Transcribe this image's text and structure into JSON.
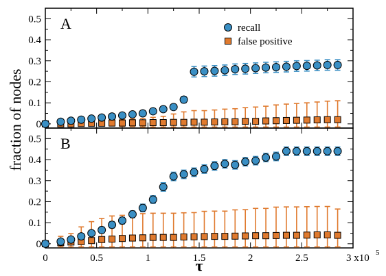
{
  "chart_data": {
    "type": "scatter",
    "ylabel": "fraction of nodes",
    "xlabel": "τ",
    "x_exponent_label": "3 x10",
    "x_exponent_power": "5",
    "xlim": [
      0,
      300000
    ],
    "ylim": [
      -0.02,
      0.55
    ],
    "x_tick_values": [
      0,
      50000,
      100000,
      150000,
      200000,
      250000,
      300000
    ],
    "x_tick_labels": [
      "0",
      "0.5",
      "1",
      "1.5",
      "2",
      "2.5",
      ""
    ],
    "y_tick_values": [
      0,
      0.1,
      0.2,
      0.3,
      0.4,
      0.5
    ],
    "y_tick_labels": [
      "0",
      "0.1",
      "0.2",
      "0.3",
      "0.4",
      "0.5"
    ],
    "legend": {
      "placement": "top-right",
      "entries": [
        {
          "name": "recall",
          "color": "#3a8fc4",
          "marker": "circle"
        },
        {
          "name": "false positive",
          "color": "#e07a2e",
          "marker": "square"
        }
      ]
    },
    "x": [
      0,
      7500,
      15000,
      22500,
      30000,
      37500,
      45000,
      52500,
      60000,
      67500,
      75000,
      82500,
      90000,
      97500,
      105000,
      112500,
      120000,
      127500,
      135000,
      142500,
      150000,
      157500,
      165000,
      172500,
      180000,
      187500,
      195000,
      202500,
      210000,
      217500,
      225000,
      232500,
      240000,
      247500,
      255000,
      262500,
      270000,
      277500,
      285000,
      292500
    ],
    "panels": [
      {
        "tag": "A",
        "series": [
          {
            "name": "recall",
            "x": [
              0,
              15000,
              25000,
              35000,
              45000,
              55000,
              65000,
              75000,
              85000,
              95000,
              105000,
              115000,
              125000,
              135000,
              145000,
              155000,
              165000,
              175000,
              185000,
              195000,
              205000,
              215000,
              225000,
              235000,
              245000,
              255000,
              265000,
              275000,
              285000
            ],
            "values": [
              0.0,
              0.01,
              0.015,
              0.02,
              0.025,
              0.03,
              0.035,
              0.04,
              0.045,
              0.05,
              0.06,
              0.07,
              0.08,
              0.115,
              0.248,
              0.25,
              0.252,
              0.255,
              0.26,
              0.262,
              0.265,
              0.268,
              0.27,
              0.272,
              0.275,
              0.276,
              0.278,
              0.28,
              0.28
            ],
            "err": [
              0,
              0.005,
              0.005,
              0.005,
              0.005,
              0.005,
              0.006,
              0.006,
              0.007,
              0.007,
              0.008,
              0.008,
              0.01,
              0.015,
              0.025,
              0.025,
              0.025,
              0.025,
              0.025,
              0.025,
              0.025,
              0.025,
              0.025,
              0.025,
              0.025,
              0.025,
              0.025,
              0.025,
              0.025
            ]
          },
          {
            "name": "false positive",
            "x": [
              0,
              15000,
              25000,
              35000,
              45000,
              55000,
              65000,
              75000,
              85000,
              95000,
              105000,
              115000,
              125000,
              135000,
              145000,
              155000,
              165000,
              175000,
              185000,
              195000,
              205000,
              215000,
              225000,
              235000,
              245000,
              255000,
              265000,
              275000,
              285000
            ],
            "values": [
              0.0,
              0.0,
              0.0,
              0.002,
              0.003,
              0.003,
              0.004,
              0.004,
              0.005,
              0.005,
              0.006,
              0.006,
              0.007,
              0.007,
              0.008,
              0.008,
              0.009,
              0.01,
              0.01,
              0.012,
              0.012,
              0.014,
              0.015,
              0.016,
              0.017,
              0.018,
              0.019,
              0.02,
              0.02
            ],
            "err": [
              0,
              0.005,
              0.006,
              0.008,
              0.01,
              0.012,
              0.014,
              0.016,
              0.018,
              0.02,
              0.025,
              0.03,
              0.04,
              0.05,
              0.055,
              0.055,
              0.057,
              0.06,
              0.062,
              0.065,
              0.068,
              0.07,
              0.075,
              0.078,
              0.08,
              0.082,
              0.085,
              0.088,
              0.09
            ]
          }
        ]
      },
      {
        "tag": "B",
        "series": [
          {
            "name": "recall",
            "x": [
              0,
              15000,
              25000,
              35000,
              45000,
              55000,
              65000,
              75000,
              85000,
              95000,
              105000,
              115000,
              125000,
              135000,
              145000,
              155000,
              165000,
              175000,
              185000,
              195000,
              205000,
              215000,
              225000,
              235000,
              245000,
              255000,
              265000,
              275000,
              285000
            ],
            "values": [
              0.0,
              0.01,
              0.02,
              0.035,
              0.05,
              0.065,
              0.09,
              0.11,
              0.14,
              0.17,
              0.21,
              0.27,
              0.32,
              0.33,
              0.34,
              0.355,
              0.37,
              0.38,
              0.375,
              0.39,
              0.395,
              0.41,
              0.415,
              0.44,
              0.44,
              0.44,
              0.44,
              0.44,
              0.44
            ],
            "err": [
              0,
              0.005,
              0.007,
              0.01,
              0.012,
              0.015,
              0.015,
              0.016,
              0.016,
              0.018,
              0.018,
              0.02,
              0.02,
              0.02,
              0.02,
              0.02,
              0.02,
              0.02,
              0.02,
              0.02,
              0.02,
              0.02,
              0.02,
              0.02,
              0.02,
              0.02,
              0.02,
              0.02,
              0.02
            ]
          },
          {
            "name": "false positive",
            "x": [
              0,
              15000,
              25000,
              35000,
              45000,
              55000,
              65000,
              75000,
              85000,
              95000,
              105000,
              115000,
              125000,
              135000,
              145000,
              155000,
              165000,
              175000,
              185000,
              195000,
              205000,
              215000,
              225000,
              235000,
              245000,
              255000,
              265000,
              275000,
              285000
            ],
            "values": [
              0.0,
              0.005,
              0.008,
              0.01,
              0.015,
              0.02,
              0.022,
              0.025,
              0.027,
              0.028,
              0.03,
              0.03,
              0.03,
              0.032,
              0.033,
              0.034,
              0.035,
              0.035,
              0.036,
              0.037,
              0.038,
              0.038,
              0.039,
              0.04,
              0.04,
              0.041,
              0.042,
              0.042,
              0.04
            ],
            "err": [
              0,
              0.03,
              0.04,
              0.07,
              0.09,
              0.1,
              0.11,
              0.11,
              0.115,
              0.115,
              0.115,
              0.115,
              0.115,
              0.115,
              0.115,
              0.12,
              0.12,
              0.12,
              0.125,
              0.125,
              0.13,
              0.13,
              0.135,
              0.135,
              0.135,
              0.135,
              0.135,
              0.135,
              0.125
            ]
          }
        ]
      }
    ]
  }
}
